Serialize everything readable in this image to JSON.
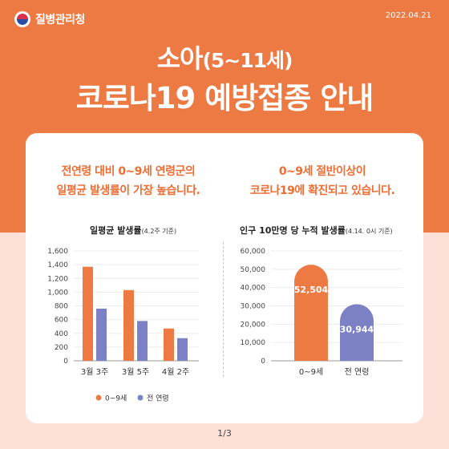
{
  "header": {
    "logo_text": "질병관리청",
    "date": "2022.04.21",
    "title_main": "소아",
    "title_sub": "(5~11세)",
    "title_line2": "코로나19 예방접종 안내"
  },
  "left_panel": {
    "lead_line1": "전연령 대비 0~9세 연령군의",
    "lead_line2": "일평균 발생률이 가장 높습니다.",
    "chart_title": "일평균 발생률",
    "chart_note": "(4.2주 기준)"
  },
  "right_panel": {
    "lead_line1": "0~9세 절반이상이",
    "lead_line2": "코로나19에 확진되고 있습니다.",
    "chart_title": "인구 10만명 당 누적 발생률",
    "chart_note": "(4.14. 0시 기준)"
  },
  "page_indicator": "1/3",
  "colors": {
    "orange": "#ee7a43",
    "purple": "#7c80c4"
  },
  "chart_data": [
    {
      "type": "bar",
      "categories": [
        "3월 3주",
        "3월 5주",
        "4월 2주"
      ],
      "series": [
        {
          "name": "0~9세",
          "values": [
            1370,
            1030,
            470
          ],
          "color": "#ee7a43"
        },
        {
          "name": "전 연령",
          "values": [
            760,
            580,
            330
          ],
          "color": "#7c80c4"
        }
      ],
      "ylim": [
        0,
        1600
      ],
      "yticks": [
        "0",
        "200",
        "400",
        "600",
        "800",
        "1,000",
        "1,200",
        "1,400",
        "1,600"
      ],
      "legend": "bottom"
    },
    {
      "type": "bar",
      "categories": [
        "0~9세",
        "전 연령"
      ],
      "values": [
        52504,
        30944
      ],
      "data_labels": [
        "52,504",
        "30,944"
      ],
      "colors": [
        "#ee7a43",
        "#7c80c4"
      ],
      "ylim": [
        0,
        60000
      ],
      "yticks": [
        "0",
        "10,000",
        "20,000",
        "30,000",
        "40,000",
        "50,000",
        "60,000"
      ]
    }
  ]
}
